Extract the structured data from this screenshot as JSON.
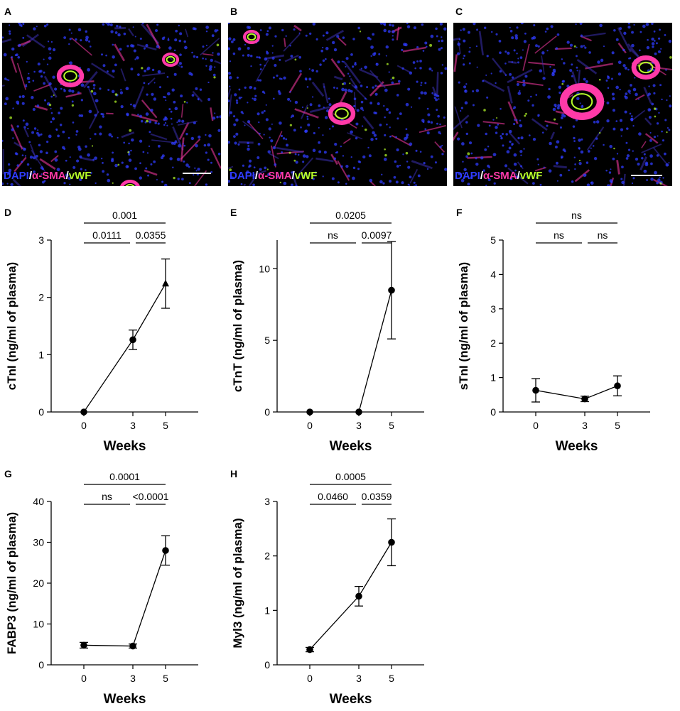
{
  "micrographs": [
    {
      "letter": "A",
      "stains": [
        "DAPI",
        "α-SMA",
        "vWF"
      ]
    },
    {
      "letter": "B",
      "stains": [
        "DAPI",
        "α-SMA",
        "vWF"
      ]
    },
    {
      "letter": "C",
      "stains": [
        "DAPI",
        "α-SMA",
        "vWF"
      ]
    }
  ],
  "colors": {
    "dapi": "#2f3cff",
    "sma": "#ff3aa8",
    "vwf": "#b8ff2a",
    "background": "#000000",
    "marker": "#000000"
  },
  "chart_data": [
    {
      "panel": "D",
      "type": "line",
      "x": [
        0,
        3,
        5
      ],
      "y": [
        0,
        1.26,
        2.24
      ],
      "error": [
        [
          0,
          0
        ],
        [
          0.17,
          0.17
        ],
        [
          0.43,
          0.43
        ]
      ],
      "ylim": [
        0,
        3
      ],
      "yticks": [
        0,
        1,
        2,
        3
      ],
      "xticks": [
        "0",
        "3",
        "5"
      ],
      "ylabel": "cTnI (ng/ml of plasma)",
      "xlabel": "Weeks",
      "markers": [
        "circle",
        "circle",
        "triangle"
      ],
      "comparisons": [
        {
          "from": 0,
          "to": 5,
          "label": "0.001",
          "level": 2
        },
        {
          "from": 0,
          "to": 3,
          "label": "0.0111",
          "level": 1
        },
        {
          "from": 3,
          "to": 5,
          "label": "0.0355",
          "level": 1
        }
      ]
    },
    {
      "panel": "E",
      "type": "line",
      "x": [
        0,
        3,
        5
      ],
      "y": [
        0,
        0,
        8.5
      ],
      "error": [
        [
          0,
          0
        ],
        [
          0,
          0
        ],
        [
          3.4,
          3.4
        ]
      ],
      "ylim": [
        0,
        12
      ],
      "yticks": [
        0,
        5,
        10
      ],
      "xticks": [
        "0",
        "3",
        "5"
      ],
      "ylabel": "cTnT (ng/ml of plasma)",
      "xlabel": "Weeks",
      "markers": [
        "circle",
        "circle",
        "circle"
      ],
      "comparisons": [
        {
          "from": 0,
          "to": 5,
          "label": "0.0205",
          "level": 2
        },
        {
          "from": 0,
          "to": 3,
          "label": "ns",
          "level": 1
        },
        {
          "from": 3,
          "to": 5,
          "label": "0.0097",
          "level": 1
        }
      ]
    },
    {
      "panel": "F",
      "type": "line",
      "x": [
        0,
        3,
        5
      ],
      "y": [
        0.63,
        0.38,
        0.76
      ],
      "error": [
        [
          0.34,
          0.34
        ],
        [
          0.08,
          0.08
        ],
        [
          0.29,
          0.29
        ]
      ],
      "ylim": [
        0,
        5
      ],
      "yticks": [
        0,
        1,
        2,
        3,
        4,
        5
      ],
      "xticks": [
        "0",
        "3",
        "5"
      ],
      "ylabel": "sTnI (ng/ml of plasma)",
      "xlabel": "Weeks",
      "markers": [
        "circle",
        "circle",
        "circle"
      ],
      "comparisons": [
        {
          "from": 0,
          "to": 5,
          "label": "ns",
          "level": 2
        },
        {
          "from": 0,
          "to": 3,
          "label": "ns",
          "level": 1
        },
        {
          "from": 3,
          "to": 5,
          "label": "ns",
          "level": 1
        }
      ]
    },
    {
      "panel": "G",
      "type": "line",
      "x": [
        0,
        3,
        5
      ],
      "y": [
        4.8,
        4.6,
        28.0
      ],
      "error": [
        [
          0.7,
          0.7
        ],
        [
          0.5,
          0.5
        ],
        [
          3.6,
          3.6
        ]
      ],
      "ylim": [
        0,
        40
      ],
      "yticks": [
        0,
        10,
        20,
        30,
        40
      ],
      "xticks": [
        "0",
        "3",
        "5"
      ],
      "ylabel": "FABP3 (ng/ml of plasma)",
      "xlabel": "Weeks",
      "markers": [
        "circle",
        "circle",
        "circle"
      ],
      "comparisons": [
        {
          "from": 0,
          "to": 5,
          "label": "0.0001",
          "level": 2
        },
        {
          "from": 0,
          "to": 3,
          "label": "ns",
          "level": 1
        },
        {
          "from": 3,
          "to": 5,
          "label": "<0.0001",
          "level": 1
        }
      ]
    },
    {
      "panel": "H",
      "type": "line",
      "x": [
        0,
        3,
        5
      ],
      "y": [
        0.28,
        1.26,
        2.25
      ],
      "error": [
        [
          0.04,
          0.04
        ],
        [
          0.18,
          0.18
        ],
        [
          0.43,
          0.43
        ]
      ],
      "ylim": [
        0,
        3
      ],
      "yticks": [
        0,
        1,
        2,
        3
      ],
      "xticks": [
        "0",
        "3",
        "5"
      ],
      "ylabel": "Myl3 (ng/ml of plasma)",
      "xlabel": "Weeks",
      "markers": [
        "circle",
        "circle",
        "circle"
      ],
      "comparisons": [
        {
          "from": 0,
          "to": 5,
          "label": "0.0005",
          "level": 2
        },
        {
          "from": 0,
          "to": 3,
          "label": "0.0460",
          "level": 1
        },
        {
          "from": 3,
          "to": 5,
          "label": "0.0359",
          "level": 1
        }
      ]
    }
  ]
}
